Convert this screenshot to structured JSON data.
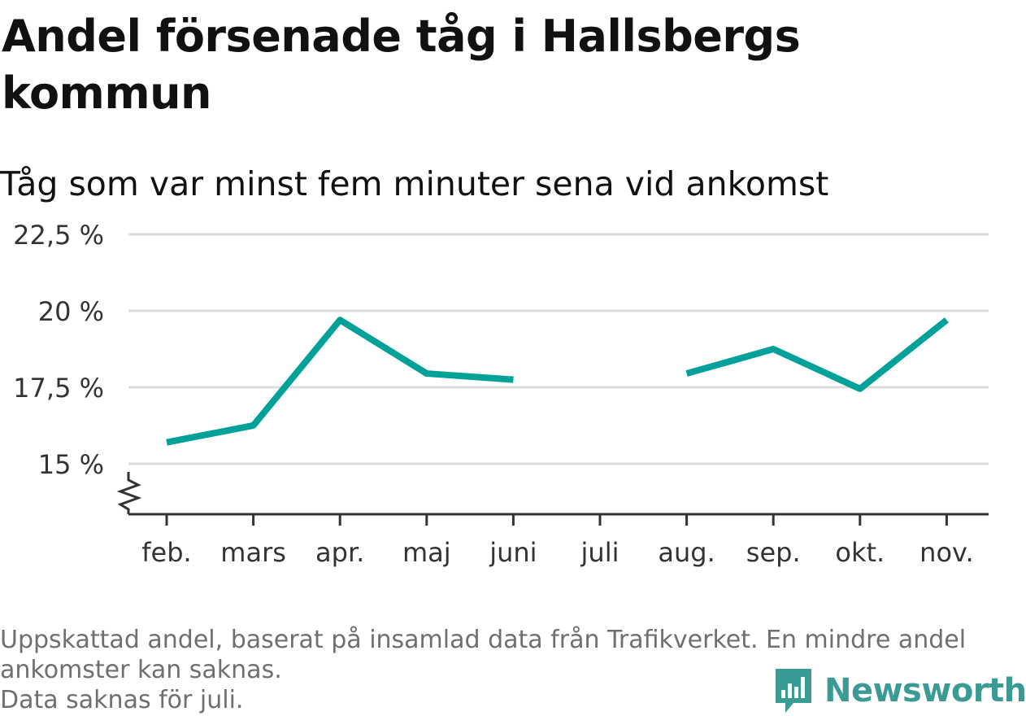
{
  "colors": {
    "line": "#00a198",
    "grid": "#dddddd",
    "axis": "#333333",
    "logo": "#3a9b94"
  },
  "logo": {
    "icon": "newsworthy-chart-icon",
    "text": "Newsworthy"
  },
  "footer": {
    "lines": [
      "Uppskattad andel, baserat på insamlad data från Trafikverket. En mindre andel",
      "ankomster kan saknas.",
      "Data saknas för juli."
    ]
  },
  "chart_data": {
    "type": "line",
    "title": "Andel försenade tåg i Hallsbergs kommun",
    "subtitle": "Tåg som var minst fem minuter sena vid ankomst",
    "categories": [
      "feb.",
      "mars",
      "apr.",
      "maj",
      "juni",
      "juli",
      "aug.",
      "sep.",
      "okt.",
      "nov."
    ],
    "values": [
      15.7,
      16.25,
      19.7,
      17.95,
      17.75,
      null,
      17.95,
      18.75,
      17.45,
      19.7
    ],
    "yticks": [
      15,
      17.5,
      20,
      22.5
    ],
    "ytick_labels": [
      "15 %",
      "17,5 %",
      "20 %",
      "22,5 %"
    ],
    "ylim": [
      13.35,
      22.5
    ],
    "grid": true,
    "axis_break": true
  }
}
